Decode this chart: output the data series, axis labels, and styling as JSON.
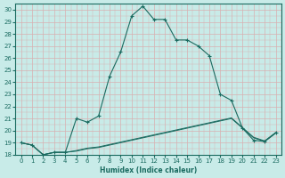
{
  "xlabel": "Humidex (Indice chaleur)",
  "bg_color": "#c8ebe8",
  "line_color": "#1a6b60",
  "grid_color": "#d8b0b0",
  "xlim": [
    -0.5,
    23.5
  ],
  "ylim": [
    18,
    30.5
  ],
  "xticks": [
    0,
    1,
    2,
    3,
    4,
    5,
    6,
    7,
    8,
    9,
    10,
    11,
    12,
    13,
    14,
    15,
    16,
    17,
    18,
    19,
    20,
    21,
    22,
    23
  ],
  "yticks": [
    18,
    19,
    20,
    21,
    22,
    23,
    24,
    25,
    26,
    27,
    28,
    29,
    30
  ],
  "series1_x": [
    0,
    1,
    2,
    3,
    4,
    5,
    6,
    7,
    8,
    9,
    10,
    11,
    12,
    13,
    14,
    15,
    16,
    17,
    18,
    19,
    20,
    21,
    22,
    23
  ],
  "series1_y": [
    19.0,
    18.8,
    18.0,
    18.2,
    18.2,
    21.0,
    20.7,
    21.2,
    24.5,
    26.5,
    29.5,
    30.3,
    29.2,
    29.2,
    27.5,
    27.5,
    27.0,
    26.2,
    23.0,
    22.5,
    20.2,
    19.2,
    19.1,
    19.8
  ],
  "series2_x": [
    0,
    1,
    2,
    3,
    4,
    5,
    6,
    7,
    8,
    9,
    10,
    11,
    12,
    13,
    14,
    15,
    16,
    17,
    18,
    19,
    20,
    21,
    22,
    23
  ],
  "series2_y": [
    19.0,
    18.8,
    18.0,
    18.2,
    18.2,
    18.3,
    18.5,
    18.6,
    18.8,
    19.0,
    19.2,
    19.4,
    19.6,
    19.8,
    20.0,
    20.2,
    20.4,
    20.6,
    20.8,
    21.0,
    20.2,
    19.4,
    19.1,
    19.8
  ],
  "series3_x": [
    0,
    1,
    2,
    3,
    4,
    5,
    6,
    7,
    8,
    9,
    10,
    11,
    12,
    13,
    14,
    15,
    16,
    17,
    18,
    19,
    20,
    21,
    22,
    23
  ],
  "series3_y": [
    19.0,
    18.8,
    18.0,
    18.2,
    18.2,
    18.35,
    18.55,
    18.65,
    18.85,
    19.05,
    19.25,
    19.45,
    19.65,
    19.85,
    20.05,
    20.25,
    20.45,
    20.65,
    20.85,
    21.05,
    20.25,
    19.45,
    19.15,
    19.85
  ]
}
